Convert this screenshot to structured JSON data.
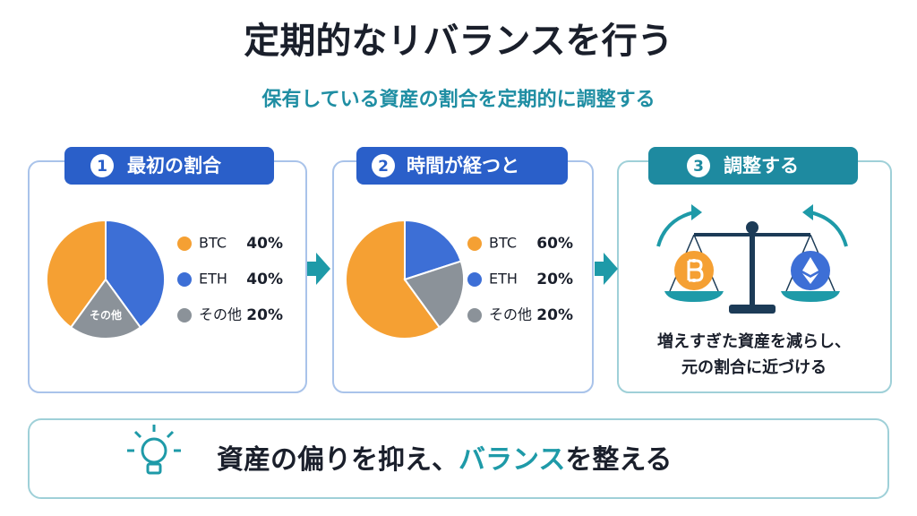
{
  "title": "定期的なリバランスを行う",
  "subtitle": "保有している資産の割合を定期的に調整する",
  "panels": [
    {
      "number": "1",
      "heading": "最初の割合",
      "chart_data": {
        "type": "pie",
        "categories": [
          "BTC",
          "ETH",
          "その他"
        ],
        "values": [
          40,
          40,
          20
        ],
        "value_labels": [
          "40%",
          "40%",
          "20%"
        ],
        "colors": [
          "#f5a033",
          "#3d6fd6",
          "#8b9299"
        ]
      }
    },
    {
      "number": "2",
      "heading": "時間が経つと",
      "chart_data": {
        "type": "pie",
        "categories": [
          "BTC",
          "ETH",
          "その他"
        ],
        "values": [
          60,
          20,
          20
        ],
        "value_labels": [
          "60%",
          "20%",
          "20%"
        ],
        "colors": [
          "#f5a033",
          "#3d6fd6",
          "#8b9299"
        ]
      }
    },
    {
      "number": "3",
      "heading": "調整する",
      "lines": [
        "増えすぎた資産を減らし、",
        "元の割合に近づける"
      ]
    }
  ],
  "footer": {
    "before": "資産の偏りを抑え、",
    "highlight": "バランス",
    "after": "を整える"
  }
}
